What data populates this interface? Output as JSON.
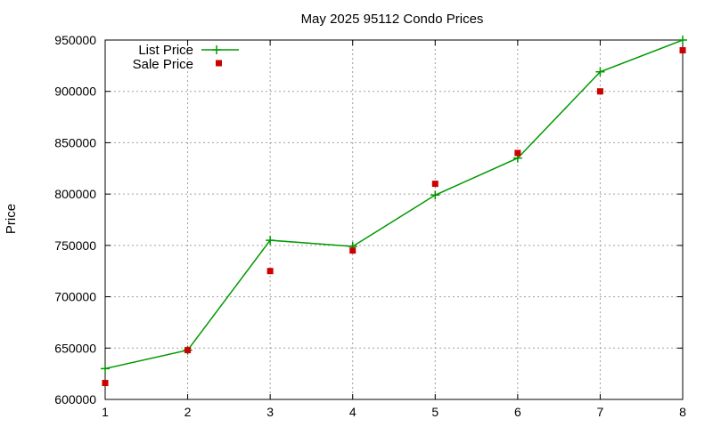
{
  "chart_data": {
    "type": "line",
    "title": "May 2025 95112 Condo Prices",
    "xlabel": "",
    "ylabel": "Price",
    "x": [
      1,
      2,
      3,
      4,
      5,
      6,
      7,
      8
    ],
    "xlim": [
      1,
      8
    ],
    "ylim": [
      600000,
      950000
    ],
    "xticks": [
      "1",
      "2",
      "3",
      "4",
      "5",
      "6",
      "7",
      "8"
    ],
    "yticks": [
      "600000",
      "650000",
      "700000",
      "750000",
      "800000",
      "850000",
      "900000",
      "950000"
    ],
    "grid": true,
    "legend_position": "top-left",
    "series": [
      {
        "name": "List Price",
        "style": "line-with-plus-markers",
        "color": "#009900",
        "values": [
          630000,
          648000,
          755000,
          749000,
          799000,
          835000,
          919000,
          950000
        ]
      },
      {
        "name": "Sale Price",
        "style": "square-markers",
        "color": "#cc0000",
        "values": [
          616000,
          648000,
          725000,
          745000,
          810000,
          840000,
          900000,
          940000
        ]
      }
    ]
  }
}
